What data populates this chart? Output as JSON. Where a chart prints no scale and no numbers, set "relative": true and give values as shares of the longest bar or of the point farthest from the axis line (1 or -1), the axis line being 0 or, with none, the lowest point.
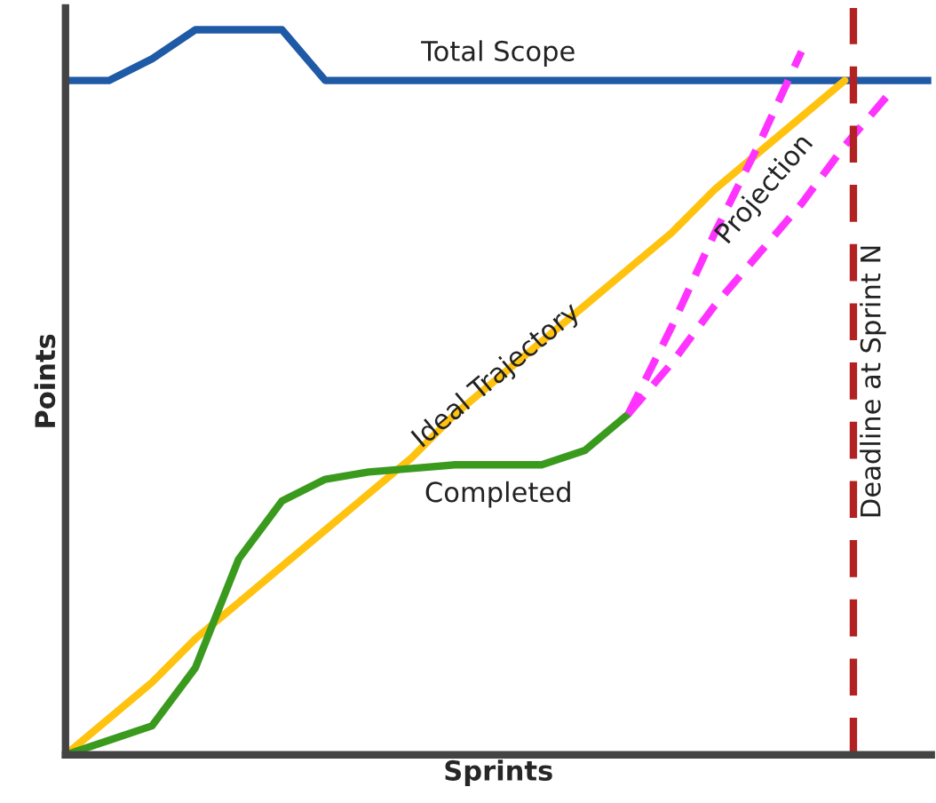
{
  "chart_data": {
    "type": "line",
    "relative": true,
    "xlabel": "Sprints",
    "ylabel": "Points",
    "annotations": [
      "Deadline at Sprint N"
    ],
    "categories": [
      null,
      null,
      null,
      null,
      null,
      null,
      null,
      null,
      null,
      null,
      null,
      null,
      null,
      null,
      null,
      null,
      null,
      null,
      null,
      null,
      null
    ],
    "series": [
      {
        "name": "Total Scope",
        "color": "#1f5aa6",
        "values": [
          0.93,
          0.93,
          0.96,
          1.0,
          1.0,
          1.0,
          0.93,
          0.93,
          0.93,
          0.93,
          0.93,
          0.93,
          0.93,
          0.93,
          0.93,
          0.93,
          0.93,
          0.93,
          0.93,
          0.93,
          0.93
        ]
      },
      {
        "name": "Ideal Trajectory",
        "color": "#ffc20e",
        "values": [
          0,
          0.05,
          0.1,
          0.16,
          0.21,
          0.26,
          0.31,
          0.36,
          0.41,
          0.47,
          0.52,
          0.57,
          0.62,
          0.67,
          0.72,
          0.78,
          0.83,
          0.88,
          0.93,
          null,
          null
        ]
      },
      {
        "name": "Completed",
        "color": "#3a9a1e",
        "values": [
          0,
          0.02,
          0.04,
          0.12,
          0.27,
          0.35,
          0.38,
          0.39,
          0.395,
          0.4,
          0.4,
          0.4,
          0.42,
          0.47,
          null,
          null,
          null,
          null,
          null,
          null,
          null
        ]
      },
      {
        "color": "#ff33ff",
        "line_style": "dashed",
        "values": [
          null,
          null,
          null,
          null,
          null,
          null,
          null,
          null,
          null,
          null,
          null,
          null,
          null,
          0.47,
          0.59,
          0.72,
          0.84,
          0.97,
          null,
          null,
          null
        ]
      },
      {
        "name": "Projection",
        "color": "#ff33ff",
        "line_style": "dashed",
        "values": [
          null,
          null,
          null,
          null,
          null,
          null,
          null,
          null,
          null,
          null,
          null,
          null,
          null,
          0.47,
          0.54,
          0.62,
          0.69,
          0.76,
          0.84,
          0.91,
          null
        ]
      }
    ]
  }
}
